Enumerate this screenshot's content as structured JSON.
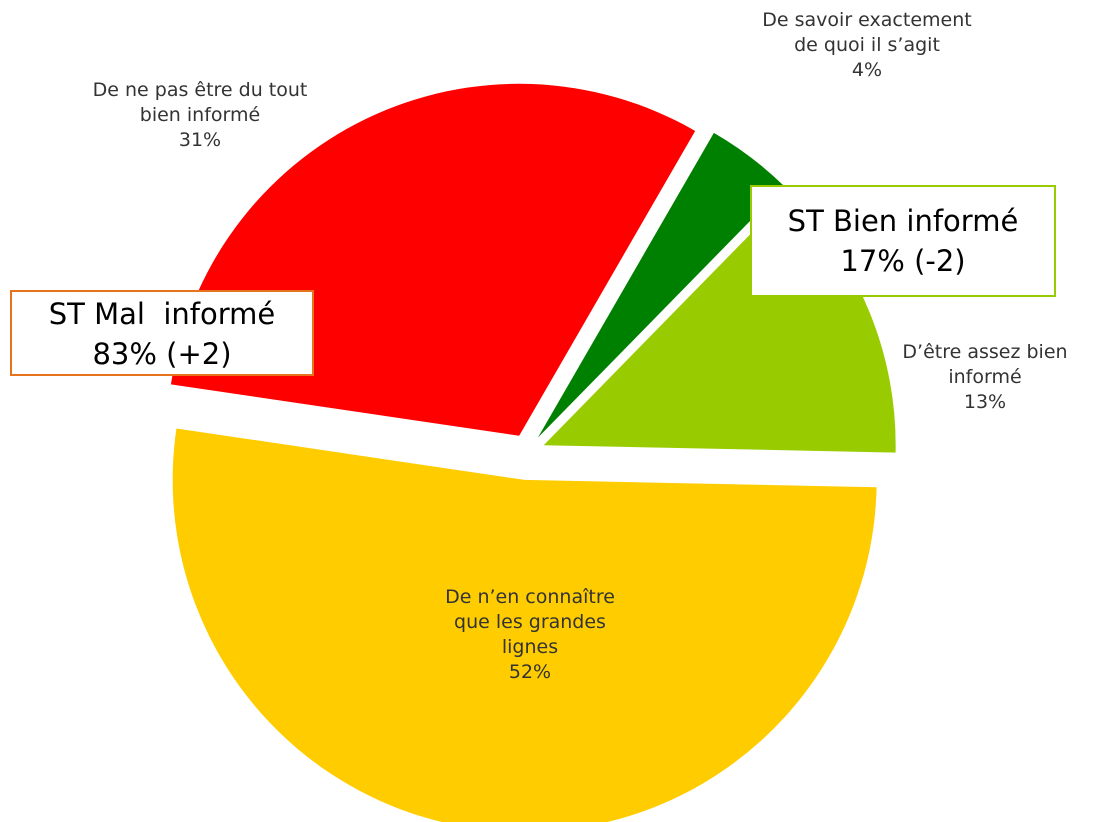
{
  "chart_data": {
    "type": "pie",
    "categories": [
      "De savoir exactement de quoi il s’agit",
      "D’être assez bien informé",
      "De n’en connaître que les grandes lignes",
      "De ne pas être du tout bien informé"
    ],
    "values": [
      4,
      13,
      52,
      31
    ],
    "value_labels": [
      "4%",
      "13%",
      "52%",
      "31%"
    ],
    "colors": [
      "#008000",
      "#99cc00",
      "#ffcc00",
      "#ff0000"
    ],
    "annotations": [
      {
        "lines": [
          "ST Bien informé",
          "17% (-2)"
        ],
        "color": "#99cc00"
      },
      {
        "lines": [
          "ST Mal  informé",
          "83% (+2)"
        ],
        "color": "#e8731f"
      }
    ]
  }
}
